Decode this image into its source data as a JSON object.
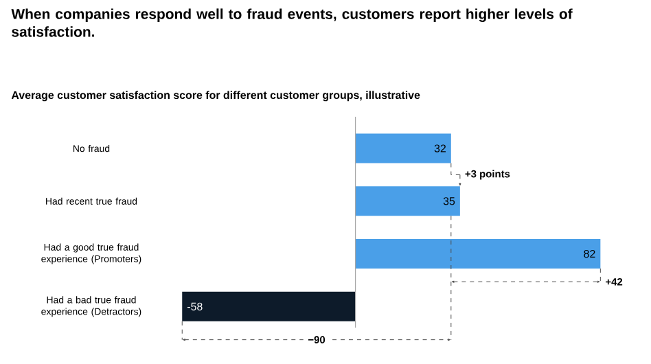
{
  "chart_data": {
    "type": "bar",
    "orientation": "horizontal",
    "title": "When companies respond well to fraud events, customers report higher levels of satisfaction.",
    "subtitle": "Average customer satisfaction score for different customer groups, illustrative",
    "categories": [
      "No fraud",
      "Had recent true fraud",
      "Had a good true fraud experience (Promoters)",
      "Had a bad true fraud experience (Detractors)"
    ],
    "values": [
      32,
      35,
      82,
      -58
    ],
    "colors": [
      "#4a9fe8",
      "#4a9fe8",
      "#4a9fe8",
      "#0d1b2a"
    ],
    "data_labels": true,
    "annotations": [
      "+3 points",
      "+42",
      "−90"
    ]
  }
}
